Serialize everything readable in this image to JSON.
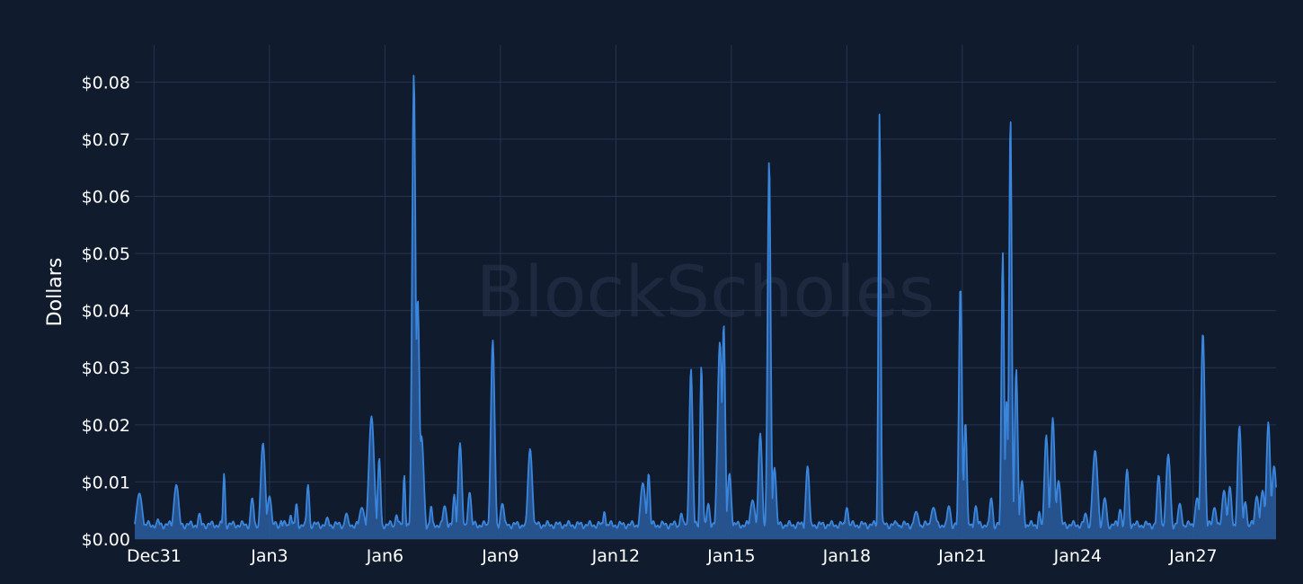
{
  "watermark": "BlockScholes",
  "colors": {
    "background": "#111b2e",
    "grid": "#243452",
    "line": "#3a86dc",
    "fill": "#2a5c9e"
  },
  "chart_data": {
    "type": "area",
    "title": "",
    "xlabel": "",
    "ylabel": "Dollars",
    "ylim": [
      0,
      0.0865
    ],
    "xlim": [
      0,
      29.65
    ],
    "grid": true,
    "legend": "none",
    "y_ticks": [
      {
        "value": 0.0,
        "label": "$0.00"
      },
      {
        "value": 0.01,
        "label": "$0.01"
      },
      {
        "value": 0.02,
        "label": "$0.02"
      },
      {
        "value": 0.03,
        "label": "$0.03"
      },
      {
        "value": 0.04,
        "label": "$0.04"
      },
      {
        "value": 0.05,
        "label": "$0.05"
      },
      {
        "value": 0.06,
        "label": "$0.06"
      },
      {
        "value": 0.07,
        "label": "$0.07"
      },
      {
        "value": 0.08,
        "label": "$0.08"
      }
    ],
    "x_ticks": [
      {
        "value": 0.5,
        "label": "Dec31"
      },
      {
        "value": 3.5,
        "label": "Jan3"
      },
      {
        "value": 6.5,
        "label": "Jan6"
      },
      {
        "value": 9.5,
        "label": "Jan9"
      },
      {
        "value": 12.5,
        "label": "Jan12"
      },
      {
        "value": 15.5,
        "label": "Jan15"
      },
      {
        "value": 18.5,
        "label": "Jan18"
      },
      {
        "value": 21.5,
        "label": "Jan21"
      },
      {
        "value": 24.5,
        "label": "Jan24"
      },
      {
        "value": 27.5,
        "label": "Jan27"
      }
    ],
    "baseline": 0.0025,
    "peaks": [
      [
        0.12,
        0.008,
        0.08
      ],
      [
        0.6,
        0.0035,
        0.05
      ],
      [
        1.08,
        0.0095,
        0.07
      ],
      [
        1.68,
        0.0045,
        0.05
      ],
      [
        2.32,
        0.0115,
        0.03
      ],
      [
        3.05,
        0.0072,
        0.05
      ],
      [
        3.33,
        0.0168,
        0.06
      ],
      [
        3.5,
        0.0075,
        0.06
      ],
      [
        3.8,
        0.0032,
        0.04
      ],
      [
        4.05,
        0.0042,
        0.04
      ],
      [
        4.2,
        0.0062,
        0.04
      ],
      [
        4.5,
        0.0095,
        0.04
      ],
      [
        5.0,
        0.0038,
        0.06
      ],
      [
        5.5,
        0.0045,
        0.06
      ],
      [
        5.9,
        0.0055,
        0.08
      ],
      [
        6.15,
        0.0215,
        0.07
      ],
      [
        6.35,
        0.0142,
        0.04
      ],
      [
        6.8,
        0.0042,
        0.05
      ],
      [
        7.0,
        0.0112,
        0.03
      ],
      [
        7.25,
        0.0815,
        0.045
      ],
      [
        7.35,
        0.042,
        0.05
      ],
      [
        7.45,
        0.018,
        0.06
      ],
      [
        7.7,
        0.0058,
        0.04
      ],
      [
        8.05,
        0.0058,
        0.06
      ],
      [
        8.3,
        0.0078,
        0.04
      ],
      [
        8.45,
        0.0168,
        0.05
      ],
      [
        8.7,
        0.0082,
        0.05
      ],
      [
        9.3,
        0.0348,
        0.05
      ],
      [
        9.55,
        0.0062,
        0.06
      ],
      [
        10.27,
        0.0158,
        0.06
      ],
      [
        12.2,
        0.0048,
        0.04
      ],
      [
        13.2,
        0.0098,
        0.07
      ],
      [
        13.35,
        0.0115,
        0.04
      ],
      [
        14.2,
        0.0045,
        0.05
      ],
      [
        14.45,
        0.0298,
        0.045
      ],
      [
        14.72,
        0.0305,
        0.035
      ],
      [
        14.9,
        0.0062,
        0.05
      ],
      [
        15.2,
        0.0345,
        0.06
      ],
      [
        15.3,
        0.0378,
        0.04
      ],
      [
        15.45,
        0.0115,
        0.05
      ],
      [
        16.05,
        0.0068,
        0.07
      ],
      [
        16.25,
        0.0185,
        0.05
      ],
      [
        16.48,
        0.0665,
        0.04
      ],
      [
        16.62,
        0.0125,
        0.05
      ],
      [
        17.48,
        0.0128,
        0.05
      ],
      [
        18.5,
        0.0055,
        0.05
      ],
      [
        19.35,
        0.0748,
        0.03
      ],
      [
        19.8,
        0.0028,
        0.05
      ],
      [
        20.3,
        0.0048,
        0.08
      ],
      [
        20.75,
        0.0055,
        0.08
      ],
      [
        21.15,
        0.0058,
        0.06
      ],
      [
        21.45,
        0.0445,
        0.04
      ],
      [
        21.58,
        0.0205,
        0.04
      ],
      [
        21.85,
        0.0058,
        0.05
      ],
      [
        22.25,
        0.0072,
        0.05
      ],
      [
        22.55,
        0.0502,
        0.035
      ],
      [
        22.65,
        0.0242,
        0.04
      ],
      [
        22.75,
        0.0742,
        0.035
      ],
      [
        22.9,
        0.0298,
        0.04
      ],
      [
        23.05,
        0.0102,
        0.05
      ],
      [
        23.5,
        0.0048,
        0.04
      ],
      [
        23.68,
        0.0182,
        0.05
      ],
      [
        23.85,
        0.0212,
        0.05
      ],
      [
        24.0,
        0.0102,
        0.06
      ],
      [
        24.7,
        0.0045,
        0.06
      ],
      [
        24.95,
        0.0155,
        0.07
      ],
      [
        25.2,
        0.0072,
        0.06
      ],
      [
        25.6,
        0.0052,
        0.05
      ],
      [
        25.78,
        0.0122,
        0.05
      ],
      [
        26.6,
        0.0112,
        0.05
      ],
      [
        26.85,
        0.0148,
        0.06
      ],
      [
        27.15,
        0.0062,
        0.06
      ],
      [
        27.6,
        0.0072,
        0.06
      ],
      [
        27.75,
        0.0362,
        0.05
      ],
      [
        28.05,
        0.0055,
        0.06
      ],
      [
        28.3,
        0.0085,
        0.06
      ],
      [
        28.45,
        0.0092,
        0.05
      ],
      [
        28.7,
        0.0198,
        0.05
      ],
      [
        28.85,
        0.0065,
        0.05
      ],
      [
        29.15,
        0.0075,
        0.06
      ],
      [
        29.3,
        0.0085,
        0.06
      ],
      [
        29.45,
        0.0205,
        0.05
      ],
      [
        29.6,
        0.0128,
        0.06
      ]
    ]
  }
}
